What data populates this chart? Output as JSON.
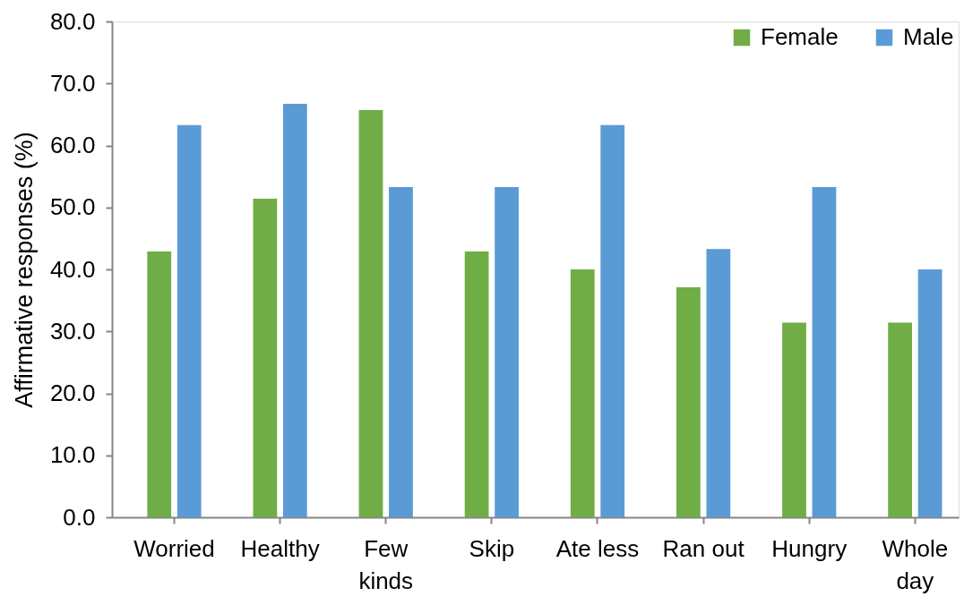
{
  "chart_data": {
    "type": "bar",
    "ylabel": "Affirmative responses (%)",
    "categories": [
      "Worried",
      "Healthy",
      "Few kinds",
      "Skip",
      "Ate less",
      "Ran out",
      "Hungry",
      "Whole day"
    ],
    "series": [
      {
        "name": "Female",
        "color": "#70ad47",
        "values": [
          42.9,
          51.4,
          65.7,
          42.9,
          40.0,
          37.1,
          31.4,
          31.4
        ]
      },
      {
        "name": "Male",
        "color": "#5b9bd5",
        "values": [
          63.3,
          66.7,
          53.3,
          53.3,
          63.3,
          43.3,
          53.3,
          40.0
        ]
      }
    ],
    "ylim": [
      0,
      80
    ],
    "yticks": [
      {
        "value": 0,
        "label": "0.0"
      },
      {
        "value": 10,
        "label": "10.0"
      },
      {
        "value": 20,
        "label": "20.0"
      },
      {
        "value": 30,
        "label": "30.0"
      },
      {
        "value": 40,
        "label": "40.0"
      },
      {
        "value": 50,
        "label": "50.0"
      },
      {
        "value": 60,
        "label": "60.0"
      },
      {
        "value": 70,
        "label": "70.0"
      },
      {
        "value": 80,
        "label": "80.0"
      }
    ],
    "legend": "top right"
  }
}
